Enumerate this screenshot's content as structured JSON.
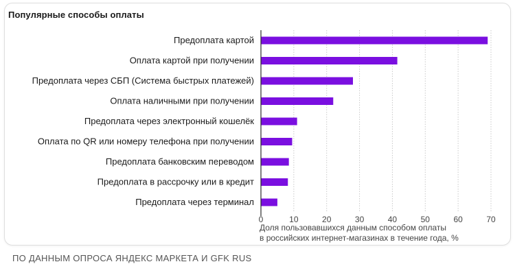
{
  "title": "Популярные способы оплаты",
  "footer": "ПО ДАННЫМ ОПРОСА ЯНДЕКС МАРКЕТА И GFK RUS",
  "colors": {
    "bar": "#7a0fe0",
    "axis": "#2a2a2a",
    "grid": "#c9c9c9"
  },
  "chart_data": {
    "type": "bar",
    "orientation": "horizontal",
    "title": "Популярные способы оплаты",
    "xlabel": "Доля пользовавшихся данным способом оплаты в российских интернет-магазинах в течение года, %",
    "xlabel_lines": [
      "Доля пользовавшихся данным способом оплаты",
      "в российских интернет-магазинах в течение года, %"
    ],
    "ylabel": "",
    "xlim": [
      0,
      70
    ],
    "xticks": [
      0,
      10,
      20,
      30,
      40,
      50,
      60,
      70
    ],
    "grid": true,
    "categories": [
      "Предоплата картой",
      "Оплата картой при получении",
      "Предоплата через СБП (Система быстрых платежей)",
      "Оплата наличными при получении",
      "Предоплата через электронный кошелёк",
      "Оплата по QR или номеру телефона при получении",
      "Предоплата банковским переводом",
      "Предоплата в рассрочку или в кредит",
      "Предоплата через терминал"
    ],
    "values": [
      69,
      41.5,
      28,
      22,
      11,
      9.5,
      8.5,
      8.2,
      5
    ]
  }
}
